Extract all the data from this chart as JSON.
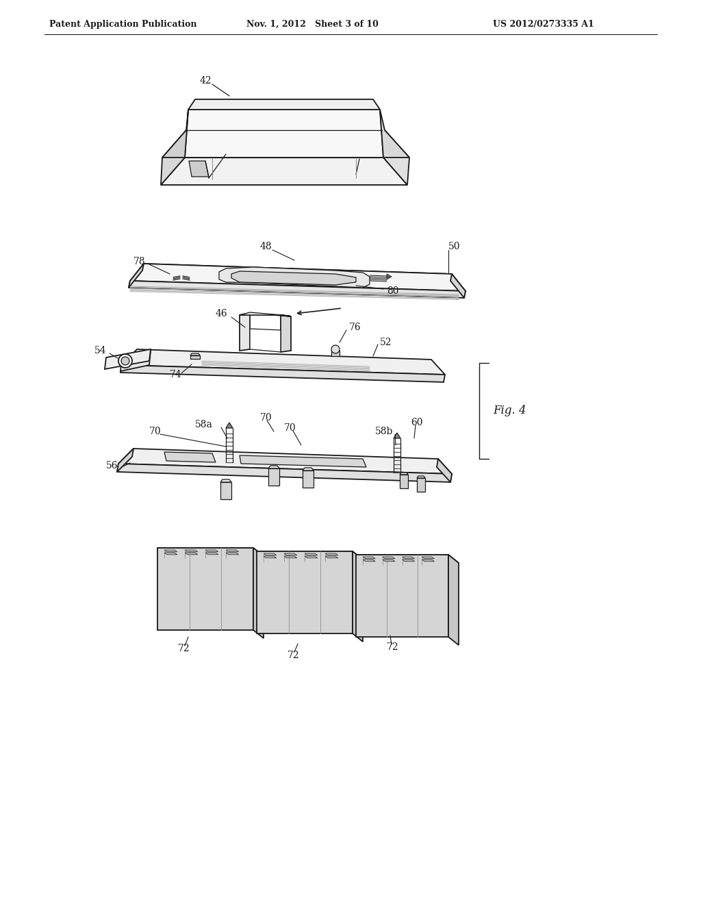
{
  "header_left": "Patent Application Publication",
  "header_mid": "Nov. 1, 2012   Sheet 3 of 10",
  "header_right": "US 2012/0273335 A1",
  "fig_label": "Fig. 4",
  "background": "#ffffff",
  "line_color": "#1a1a1a",
  "label_color": "#1a1a1a",
  "figsize": [
    10.24,
    13.2
  ],
  "dpi": 100
}
